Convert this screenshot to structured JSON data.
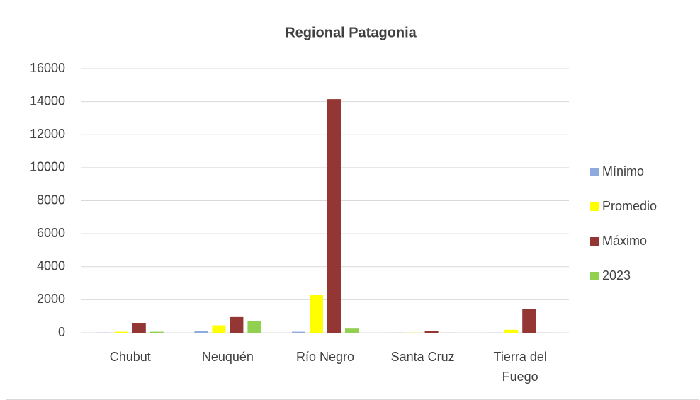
{
  "chart_data": {
    "type": "bar",
    "title": "Regional Patagonia",
    "categories": [
      "Chubut",
      "Neuquén",
      "Río Negro",
      "Santa Cruz",
      "Tierra del Fuego"
    ],
    "series": [
      {
        "name": "Mínimo",
        "color": "#8faadc",
        "values": [
          10,
          100,
          60,
          5,
          5
        ]
      },
      {
        "name": "Promedio",
        "color": "#ffff00",
        "values": [
          60,
          450,
          2300,
          10,
          180
        ]
      },
      {
        "name": "Máximo",
        "color": "#943634",
        "values": [
          600,
          950,
          14150,
          100,
          1450
        ]
      },
      {
        "name": "2023",
        "color": "#92d050",
        "values": [
          60,
          700,
          250,
          5,
          5
        ]
      }
    ],
    "ylim": [
      0,
      16000
    ],
    "yticks": [
      0,
      2000,
      4000,
      6000,
      8000,
      10000,
      12000,
      14000,
      16000
    ],
    "grid": true,
    "legend": "right"
  }
}
